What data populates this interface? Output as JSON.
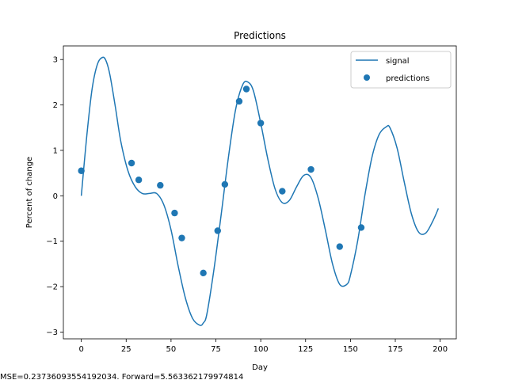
{
  "chart_data": {
    "type": "line",
    "title": "Predictions",
    "xlabel": "Day",
    "ylabel": "Percent of change",
    "xlim": [
      -10,
      209
    ],
    "ylim": [
      -3.15,
      3.3
    ],
    "xticks": [
      0,
      25,
      50,
      75,
      100,
      125,
      150,
      175,
      200
    ],
    "yticks": [
      -3,
      -2,
      -1,
      0,
      1,
      2,
      3
    ],
    "xtick_labels": [
      "0",
      "25",
      "50",
      "75",
      "100",
      "125",
      "150",
      "175",
      "200"
    ],
    "ytick_labels": [
      "−3",
      "−2",
      "−1",
      "0",
      "1",
      "2",
      "3"
    ],
    "grid": false,
    "legend": {
      "location": "top-right",
      "entries": [
        "signal",
        "predictions"
      ]
    },
    "colors": {
      "series": "#1f77b4"
    },
    "series": [
      {
        "name": "signal",
        "type": "line",
        "x": [
          0,
          3,
          6,
          9,
          12,
          14,
          16,
          19,
          22,
          26,
          30,
          34,
          38,
          42,
          46,
          50,
          54,
          58,
          62,
          66,
          68,
          70,
          74,
          78,
          82,
          86,
          90,
          93,
          96,
          100,
          104,
          108,
          112,
          116,
          120,
          124,
          128,
          132,
          136,
          140,
          144,
          148,
          150,
          154,
          158,
          162,
          166,
          170,
          172,
          176,
          180,
          184,
          188,
          192,
          196,
          199
        ],
        "y": [
          0.0,
          1.3,
          2.35,
          2.9,
          3.05,
          2.95,
          2.65,
          1.95,
          1.2,
          0.55,
          0.2,
          0.05,
          0.05,
          0.05,
          -0.2,
          -0.75,
          -1.55,
          -2.25,
          -2.7,
          -2.85,
          -2.8,
          -2.6,
          -1.6,
          -0.4,
          0.85,
          1.9,
          2.45,
          2.5,
          2.3,
          1.6,
          0.8,
          0.15,
          -0.15,
          -0.1,
          0.2,
          0.45,
          0.4,
          -0.05,
          -0.75,
          -1.5,
          -1.95,
          -1.95,
          -1.75,
          -1.0,
          0.0,
          0.85,
          1.35,
          1.52,
          1.5,
          1.05,
          0.3,
          -0.4,
          -0.8,
          -0.82,
          -0.55,
          -0.28
        ]
      },
      {
        "name": "predictions",
        "type": "scatter",
        "x": [
          0,
          28,
          32,
          44,
          52,
          56,
          68,
          76,
          80,
          88,
          92,
          100,
          112,
          128,
          144,
          156
        ],
        "y": [
          0.55,
          0.72,
          0.35,
          0.23,
          -0.38,
          -0.93,
          -1.7,
          -0.77,
          0.25,
          2.08,
          2.35,
          1.6,
          0.1,
          0.58,
          -1.12,
          -0.7
        ]
      }
    ]
  },
  "footer": {
    "text": "MSE=0.23736093554192034. Forward=5.563362179974814"
  }
}
